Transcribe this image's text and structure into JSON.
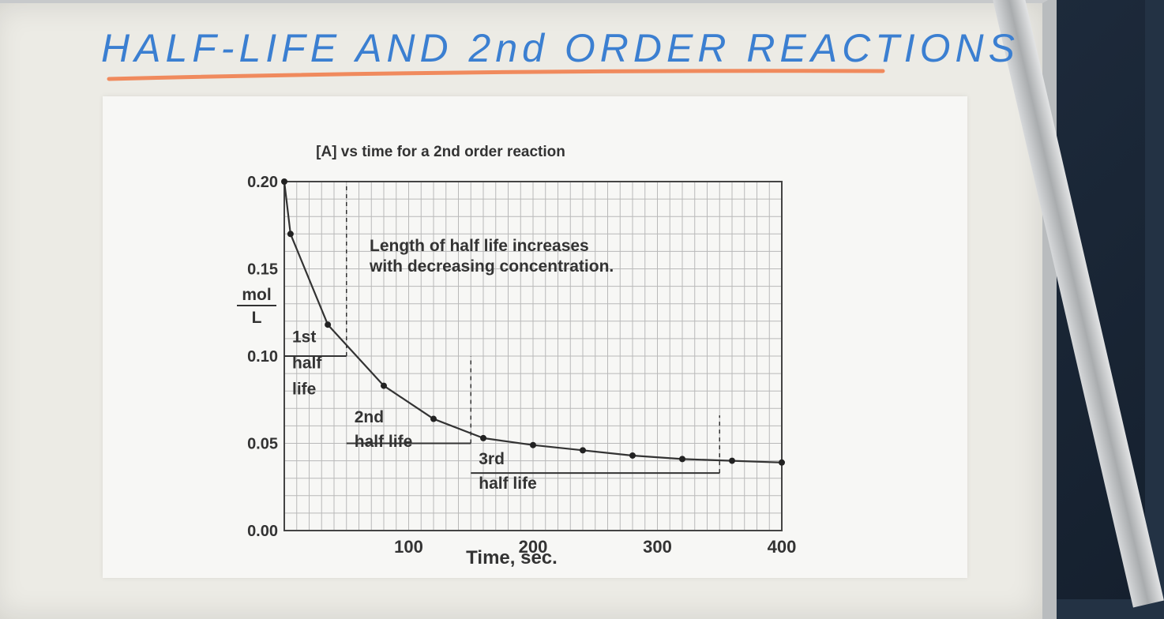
{
  "header": {
    "handwritten_title": "HALF-LIFE AND 2nd ORDER REACTIONS",
    "title_color": "#3b7fd1",
    "underline_color": "#f08a5d"
  },
  "chart_data": {
    "type": "line",
    "title": "[A] vs time for a 2nd order reaction",
    "xlabel": "Time, sec.",
    "ylabel_numerator": "mol",
    "ylabel_denominator": "L",
    "xlim": [
      0,
      400
    ],
    "ylim": [
      0,
      0.2
    ],
    "x_ticks": [
      "100",
      "200",
      "300",
      "400"
    ],
    "x_tick_values": [
      100,
      200,
      300,
      400
    ],
    "y_ticks": [
      "0.00",
      "0.05",
      "0.10",
      "0.15",
      "0.20"
    ],
    "y_tick_values": [
      0,
      0.05,
      0.1,
      0.15,
      0.2
    ],
    "grid": true,
    "grid_step_x": 10,
    "grid_step_y": 0.01,
    "annotation": [
      "Length of half life increases",
      "with decreasing concentration."
    ],
    "series": [
      {
        "x": [
          0,
          5,
          35,
          80,
          120,
          160,
          200,
          240,
          280,
          320,
          360,
          400
        ],
        "y": [
          0.2,
          0.17,
          0.118,
          0.083,
          0.064,
          0.053,
          0.049,
          0.046,
          0.043,
          0.041,
          0.04,
          0.039
        ]
      }
    ],
    "half_life_labels": [
      {
        "lines": [
          "1st",
          "half",
          "life"
        ]
      },
      {
        "lines": [
          "2nd",
          "half life"
        ]
      },
      {
        "lines": [
          "3rd",
          "half life"
        ]
      }
    ],
    "half_lives": [
      {
        "x_start": 0,
        "x_end": 50,
        "y": 0.1
      },
      {
        "x_start": 50,
        "x_end": 150,
        "y": 0.05
      },
      {
        "x_start": 150,
        "x_end": 350,
        "y": 0.033
      }
    ]
  }
}
